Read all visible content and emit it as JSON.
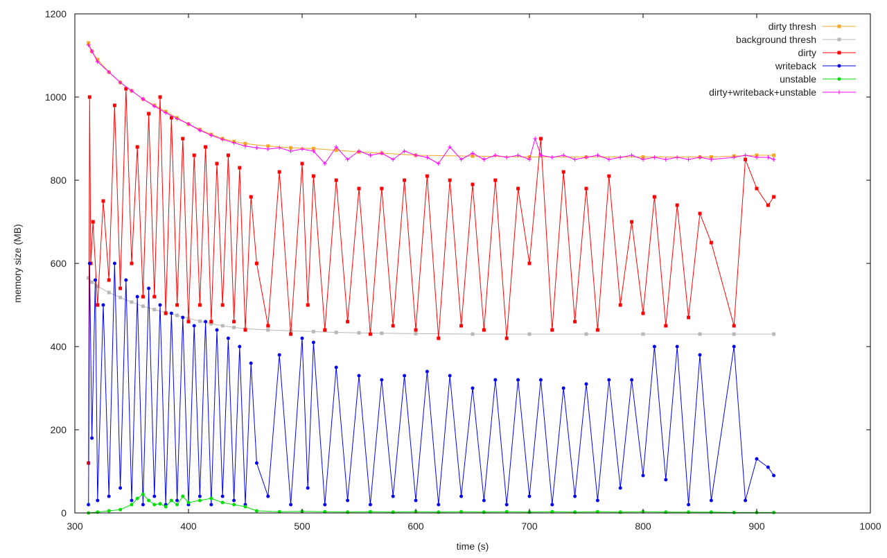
{
  "chart_data": {
    "type": "line",
    "title": "",
    "xlabel": "time (s)",
    "ylabel": "memory size (MB)",
    "xlim": [
      300,
      1000
    ],
    "ylim": [
      0,
      1200
    ],
    "x_ticks": [
      300,
      400,
      500,
      600,
      700,
      800,
      900,
      1000
    ],
    "y_ticks": [
      0,
      200,
      400,
      600,
      800,
      1000,
      1200
    ],
    "grid": false,
    "legend_position": "top-right",
    "series": [
      {
        "name": "dirty thresh",
        "color": "#f5a623",
        "marker": "square",
        "x": [
          312,
          315,
          320,
          330,
          340,
          350,
          360,
          370,
          380,
          390,
          400,
          410,
          420,
          430,
          440,
          450,
          470,
          490,
          510,
          530,
          550,
          570,
          600,
          650,
          700,
          750,
          800,
          850,
          860,
          880,
          900,
          915
        ],
        "y": [
          1130,
          1110,
          1090,
          1060,
          1035,
          1015,
          995,
          980,
          965,
          950,
          935,
          922,
          910,
          900,
          893,
          888,
          882,
          878,
          876,
          872,
          868,
          865,
          860,
          858,
          856,
          856,
          856,
          856,
          856,
          858,
          860,
          860
        ]
      },
      {
        "name": "background thresh",
        "color": "#b8b8b8",
        "marker": "square",
        "x": [
          312,
          315,
          320,
          330,
          340,
          350,
          360,
          370,
          380,
          390,
          400,
          410,
          420,
          430,
          440,
          450,
          470,
          490,
          510,
          530,
          550,
          570,
          600,
          650,
          700,
          750,
          800,
          850,
          880,
          915
        ],
        "y": [
          565,
          555,
          545,
          530,
          518,
          507,
          497,
          489,
          482,
          475,
          468,
          461,
          455,
          450,
          446,
          443,
          440,
          438,
          436,
          434,
          433,
          432,
          431,
          430,
          430,
          430,
          430,
          430,
          430,
          430
        ]
      },
      {
        "name": "dirty",
        "color": "#ff0000",
        "marker": "square",
        "x": [
          312,
          313,
          314,
          316,
          320,
          325,
          330,
          335,
          340,
          345,
          350,
          355,
          360,
          365,
          370,
          375,
          380,
          385,
          390,
          395,
          400,
          405,
          410,
          415,
          420,
          425,
          430,
          435,
          440,
          445,
          450,
          455,
          460,
          470,
          480,
          490,
          500,
          505,
          510,
          520,
          530,
          540,
          550,
          560,
          570,
          580,
          590,
          600,
          610,
          620,
          630,
          640,
          650,
          660,
          670,
          680,
          690,
          700,
          710,
          720,
          730,
          740,
          750,
          760,
          770,
          780,
          790,
          800,
          810,
          820,
          830,
          840,
          850,
          860,
          880,
          890,
          900,
          910,
          915
        ],
        "y": [
          120,
          1000,
          600,
          700,
          500,
          750,
          560,
          980,
          540,
          1020,
          600,
          880,
          520,
          960,
          520,
          1000,
          480,
          950,
          500,
          900,
          460,
          860,
          500,
          880,
          460,
          840,
          500,
          860,
          460,
          830,
          440,
          760,
          600,
          450,
          820,
          430,
          840,
          500,
          810,
          440,
          800,
          460,
          780,
          430,
          780,
          450,
          800,
          440,
          810,
          420,
          800,
          450,
          790,
          440,
          800,
          420,
          780,
          600,
          900,
          440,
          820,
          460,
          780,
          440,
          810,
          500,
          700,
          480,
          760,
          450,
          740,
          470,
          720,
          650,
          450,
          850,
          780,
          740,
          760
        ]
      },
      {
        "name": "writeback",
        "color": "#0000ee",
        "marker": "circle",
        "x": [
          312,
          313,
          315,
          318,
          320,
          325,
          330,
          335,
          340,
          345,
          350,
          355,
          360,
          365,
          370,
          375,
          380,
          385,
          390,
          395,
          400,
          405,
          410,
          415,
          420,
          425,
          430,
          435,
          440,
          445,
          450,
          455,
          460,
          470,
          480,
          490,
          500,
          505,
          510,
          520,
          530,
          540,
          550,
          560,
          570,
          580,
          590,
          600,
          610,
          620,
          630,
          640,
          650,
          660,
          670,
          680,
          690,
          700,
          710,
          720,
          730,
          740,
          750,
          760,
          770,
          780,
          790,
          800,
          810,
          820,
          830,
          840,
          850,
          860,
          880,
          890,
          900,
          910,
          915
        ],
        "y": [
          20,
          600,
          180,
          560,
          30,
          500,
          40,
          600,
          60,
          560,
          30,
          520,
          20,
          540,
          40,
          500,
          20,
          480,
          30,
          470,
          20,
          450,
          40,
          460,
          20,
          440,
          40,
          420,
          30,
          400,
          20,
          360,
          120,
          40,
          380,
          20,
          420,
          60,
          410,
          20,
          350,
          30,
          330,
          20,
          320,
          40,
          330,
          30,
          340,
          20,
          330,
          40,
          300,
          30,
          320,
          20,
          320,
          40,
          320,
          20,
          300,
          40,
          310,
          30,
          320,
          60,
          320,
          90,
          400,
          80,
          400,
          20,
          380,
          30,
          400,
          30,
          130,
          110,
          90
        ]
      },
      {
        "name": "unstable",
        "color": "#00dd00",
        "marker": "circle",
        "x": [
          312,
          320,
          330,
          340,
          350,
          355,
          360,
          365,
          370,
          375,
          380,
          385,
          390,
          395,
          400,
          410,
          420,
          430,
          440,
          450,
          460,
          480,
          500,
          520,
          540,
          560,
          580,
          600,
          620,
          640,
          660,
          680,
          700,
          720,
          740,
          760,
          780,
          800,
          820,
          840,
          860,
          880,
          900,
          915
        ],
        "y": [
          0,
          2,
          5,
          8,
          20,
          35,
          45,
          30,
          20,
          22,
          15,
          30,
          20,
          40,
          25,
          30,
          35,
          25,
          20,
          15,
          5,
          3,
          4,
          3,
          2,
          3,
          2,
          3,
          2,
          3,
          2,
          3,
          2,
          3,
          2,
          3,
          2,
          3,
          2,
          2,
          2,
          1,
          1,
          1
        ]
      },
      {
        "name": "dirty+writeback+unstable",
        "color": "#ff00ff",
        "marker": "plus",
        "x": [
          312,
          315,
          320,
          330,
          340,
          350,
          360,
          370,
          380,
          390,
          400,
          410,
          420,
          430,
          440,
          450,
          460,
          470,
          480,
          490,
          500,
          510,
          520,
          530,
          540,
          550,
          560,
          570,
          580,
          590,
          600,
          610,
          620,
          630,
          640,
          650,
          660,
          670,
          680,
          690,
          700,
          705,
          710,
          720,
          730,
          740,
          750,
          760,
          770,
          780,
          790,
          800,
          810,
          820,
          830,
          840,
          850,
          860,
          880,
          890,
          900,
          910,
          915
        ],
        "y": [
          1125,
          1110,
          1085,
          1060,
          1035,
          1015,
          995,
          978,
          962,
          948,
          935,
          920,
          908,
          898,
          890,
          882,
          878,
          875,
          878,
          870,
          875,
          870,
          840,
          880,
          850,
          870,
          860,
          865,
          850,
          870,
          860,
          855,
          840,
          880,
          850,
          865,
          850,
          860,
          855,
          860,
          850,
          900,
          860,
          855,
          860,
          850,
          855,
          860,
          850,
          855,
          860,
          850,
          855,
          850,
          855,
          850,
          855,
          850,
          855,
          860,
          855,
          855,
          850
        ]
      }
    ]
  }
}
